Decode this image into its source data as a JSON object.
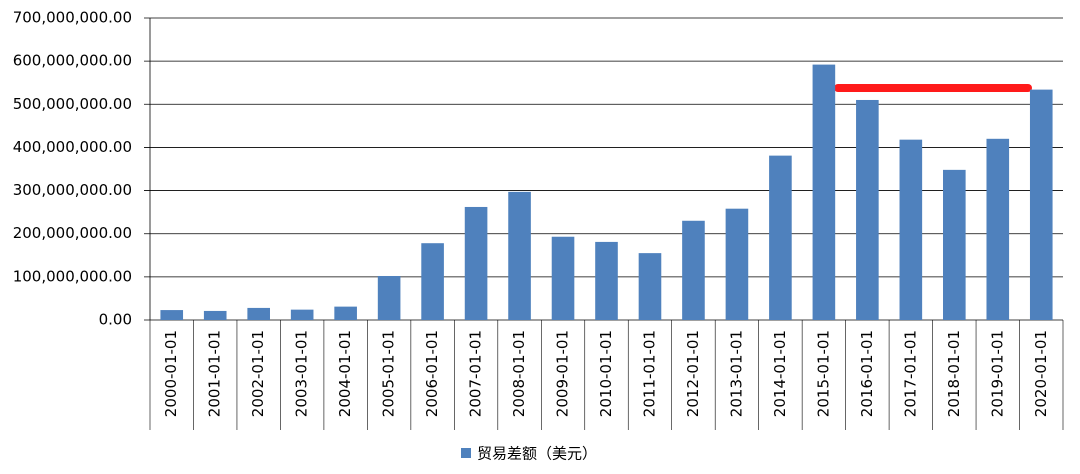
{
  "chart_data": {
    "type": "bar",
    "categories": [
      "2000-01-01",
      "2001-01-01",
      "2002-01-01",
      "2003-01-01",
      "2004-01-01",
      "2005-01-01",
      "2006-01-01",
      "2007-01-01",
      "2008-01-01",
      "2009-01-01",
      "2010-01-01",
      "2011-01-01",
      "2012-01-01",
      "2013-01-01",
      "2014-01-01",
      "2015-01-01",
      "2016-01-01",
      "2017-01-01",
      "2018-01-01",
      "2019-01-01",
      "2020-01-01"
    ],
    "series": [
      {
        "name": "贸易差额（美元）",
        "color": "#4f81bd",
        "values": [
          23000000,
          21000000,
          28000000,
          24000000,
          31000000,
          102000000,
          178000000,
          262000000,
          297000000,
          193000000,
          181000000,
          155000000,
          230000000,
          258000000,
          381000000,
          592000000,
          510000000,
          418000000,
          348000000,
          420000000,
          534000000
        ]
      }
    ],
    "ylim": [
      0,
      700000000
    ],
    "yticks": [
      {
        "value": 0,
        "label": "0.00"
      },
      {
        "value": 100000000,
        "label": "100,000,000.00"
      },
      {
        "value": 200000000,
        "label": "200,000,000.00"
      },
      {
        "value": 300000000,
        "label": "300,000,000.00"
      },
      {
        "value": 400000000,
        "label": "400,000,000.00"
      },
      {
        "value": 500000000,
        "label": "500,000,000.00"
      },
      {
        "value": 600000000,
        "label": "600,000,000.00"
      },
      {
        "value": 700000000,
        "label": "700,000,000.00"
      }
    ],
    "grid": true,
    "legend": "bottom"
  }
}
